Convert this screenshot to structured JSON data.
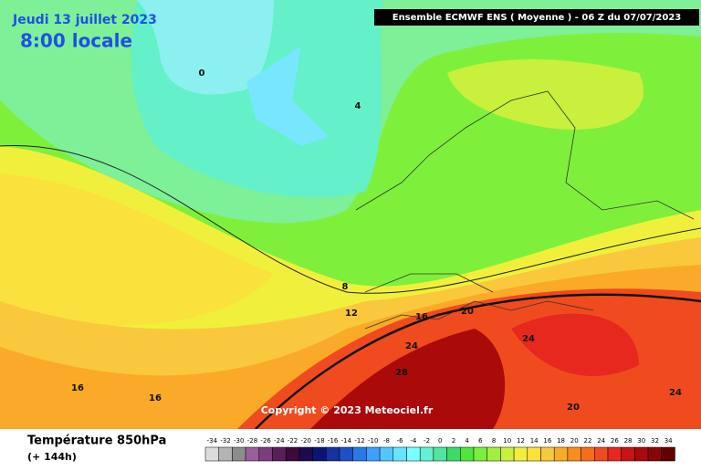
{
  "header": {
    "date": "Jeudi 13 juillet 2023",
    "time": "8:00 locale",
    "model": "Ensemble ECMWF ENS  ( Moyenne )  -  06 Z du 07/07/2023"
  },
  "copyright": "Copyright © 2023 Meteociel.fr",
  "footer": {
    "title": "Température 850hPa",
    "lead": "(+ 144h)"
  },
  "contour_labels": [
    0,
    4,
    8,
    12,
    16,
    20,
    24,
    24,
    28,
    20,
    24,
    16,
    16
  ],
  "legend": {
    "values": [
      -34,
      -32,
      -30,
      -28,
      -26,
      -24,
      -22,
      -20,
      -18,
      -16,
      -14,
      -12,
      -10,
      -8,
      -6,
      -4,
      -2,
      0,
      2,
      4,
      6,
      8,
      10,
      12,
      14,
      16,
      18,
      20,
      22,
      24,
      26,
      28,
      30,
      32,
      34
    ],
    "colors": [
      "#dcdcdc",
      "#b4b4b4",
      "#8c8c8c",
      "#9b5e9b",
      "#7b3d7b",
      "#5a1f5a",
      "#3c0a3c",
      "#1e0a50",
      "#0a1478",
      "#1432a0",
      "#1e50c8",
      "#2878e6",
      "#3ca0ff",
      "#50c8ff",
      "#64e6ff",
      "#78ffff",
      "#64f0d2",
      "#50e6a0",
      "#3cdc64",
      "#50e63c",
      "#78f03c",
      "#a0f03c",
      "#c8f03c",
      "#f0f03c",
      "#fae13c",
      "#fac83c",
      "#faaa28",
      "#fa8c1e",
      "#f56e1e",
      "#f04b1e",
      "#e6281e",
      "#c81414",
      "#aa0a0a",
      "#8c0505",
      "#640000"
    ]
  }
}
